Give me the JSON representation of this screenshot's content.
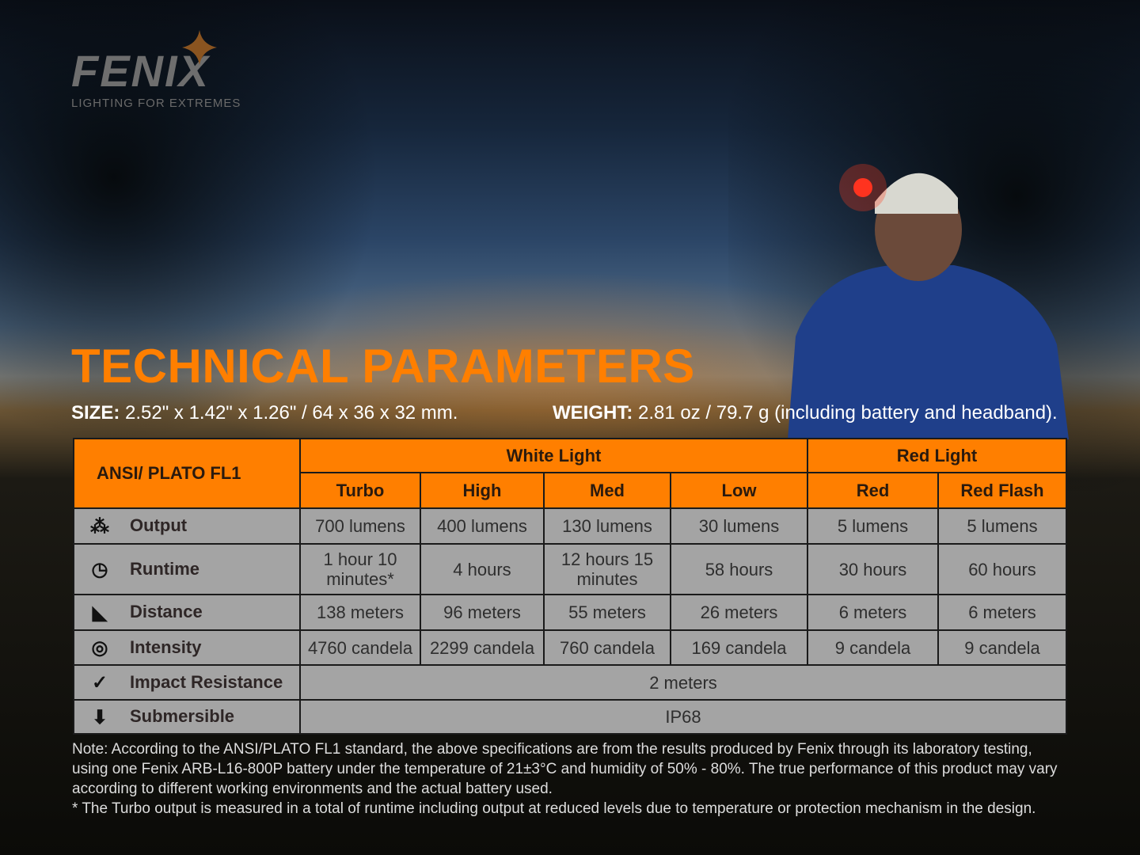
{
  "brand": {
    "name": "FENIX",
    "tagline": "LIGHTING FOR EXTREMES"
  },
  "title": "TECHNICAL PARAMETERS",
  "size": {
    "label": "SIZE:",
    "value": "2.52\" x 1.42\" x 1.26\" / 64 x 36 x 32 mm."
  },
  "weight": {
    "label": "WEIGHT:",
    "value": "2.81 oz / 79.7 g (including battery and headband)."
  },
  "table": {
    "corner": "ANSI/ PLATO  FL1",
    "groups": [
      "White Light",
      "Red Light"
    ],
    "modes": [
      "Turbo",
      "High",
      "Med",
      "Low",
      "Red",
      "Red Flash"
    ],
    "rows": [
      {
        "label": "Output",
        "icon": "light-burst-icon",
        "values": [
          "700 lumens",
          "400 lumens",
          "130 lumens",
          "30 lumens",
          "5 lumens",
          "5 lumens"
        ]
      },
      {
        "label": "Runtime",
        "icon": "clock-icon",
        "values": [
          "1 hour 10 minutes*",
          "4 hours",
          "12 hours 15 minutes",
          "58 hours",
          "30 hours",
          "60 hours"
        ]
      },
      {
        "label": "Distance",
        "icon": "beam-distance-icon",
        "values": [
          "138 meters",
          "96 meters",
          "55 meters",
          "26 meters",
          "6 meters",
          "6 meters"
        ]
      },
      {
        "label": "Intensity",
        "icon": "target-icon",
        "values": [
          "4760 candela",
          "2299 candela",
          "760 candela",
          "169 candela",
          "9 candela",
          "9 candela"
        ]
      },
      {
        "label": "Impact Resistance",
        "icon": "impact-check-icon",
        "value": "2 meters"
      },
      {
        "label": "Submersible",
        "icon": "submersible-icon",
        "value": "IP68"
      }
    ]
  },
  "notes": [
    "Note: According to the ANSI/PLATO FL1 standard, the above specifications are from the results produced by Fenix through its laboratory testing, using one Fenix ARB-L16-800P battery under the temperature of 21±3°C and humidity of 50% - 80%. The true performance of this product may vary according to different working environments and the actual battery used.",
    "* The Turbo output is measured in a total of runtime including output at reduced levels due to temperature or protection mechanism in the design."
  ],
  "colors": {
    "accent": "#ff7f00",
    "cell": "#a4a4a4"
  }
}
